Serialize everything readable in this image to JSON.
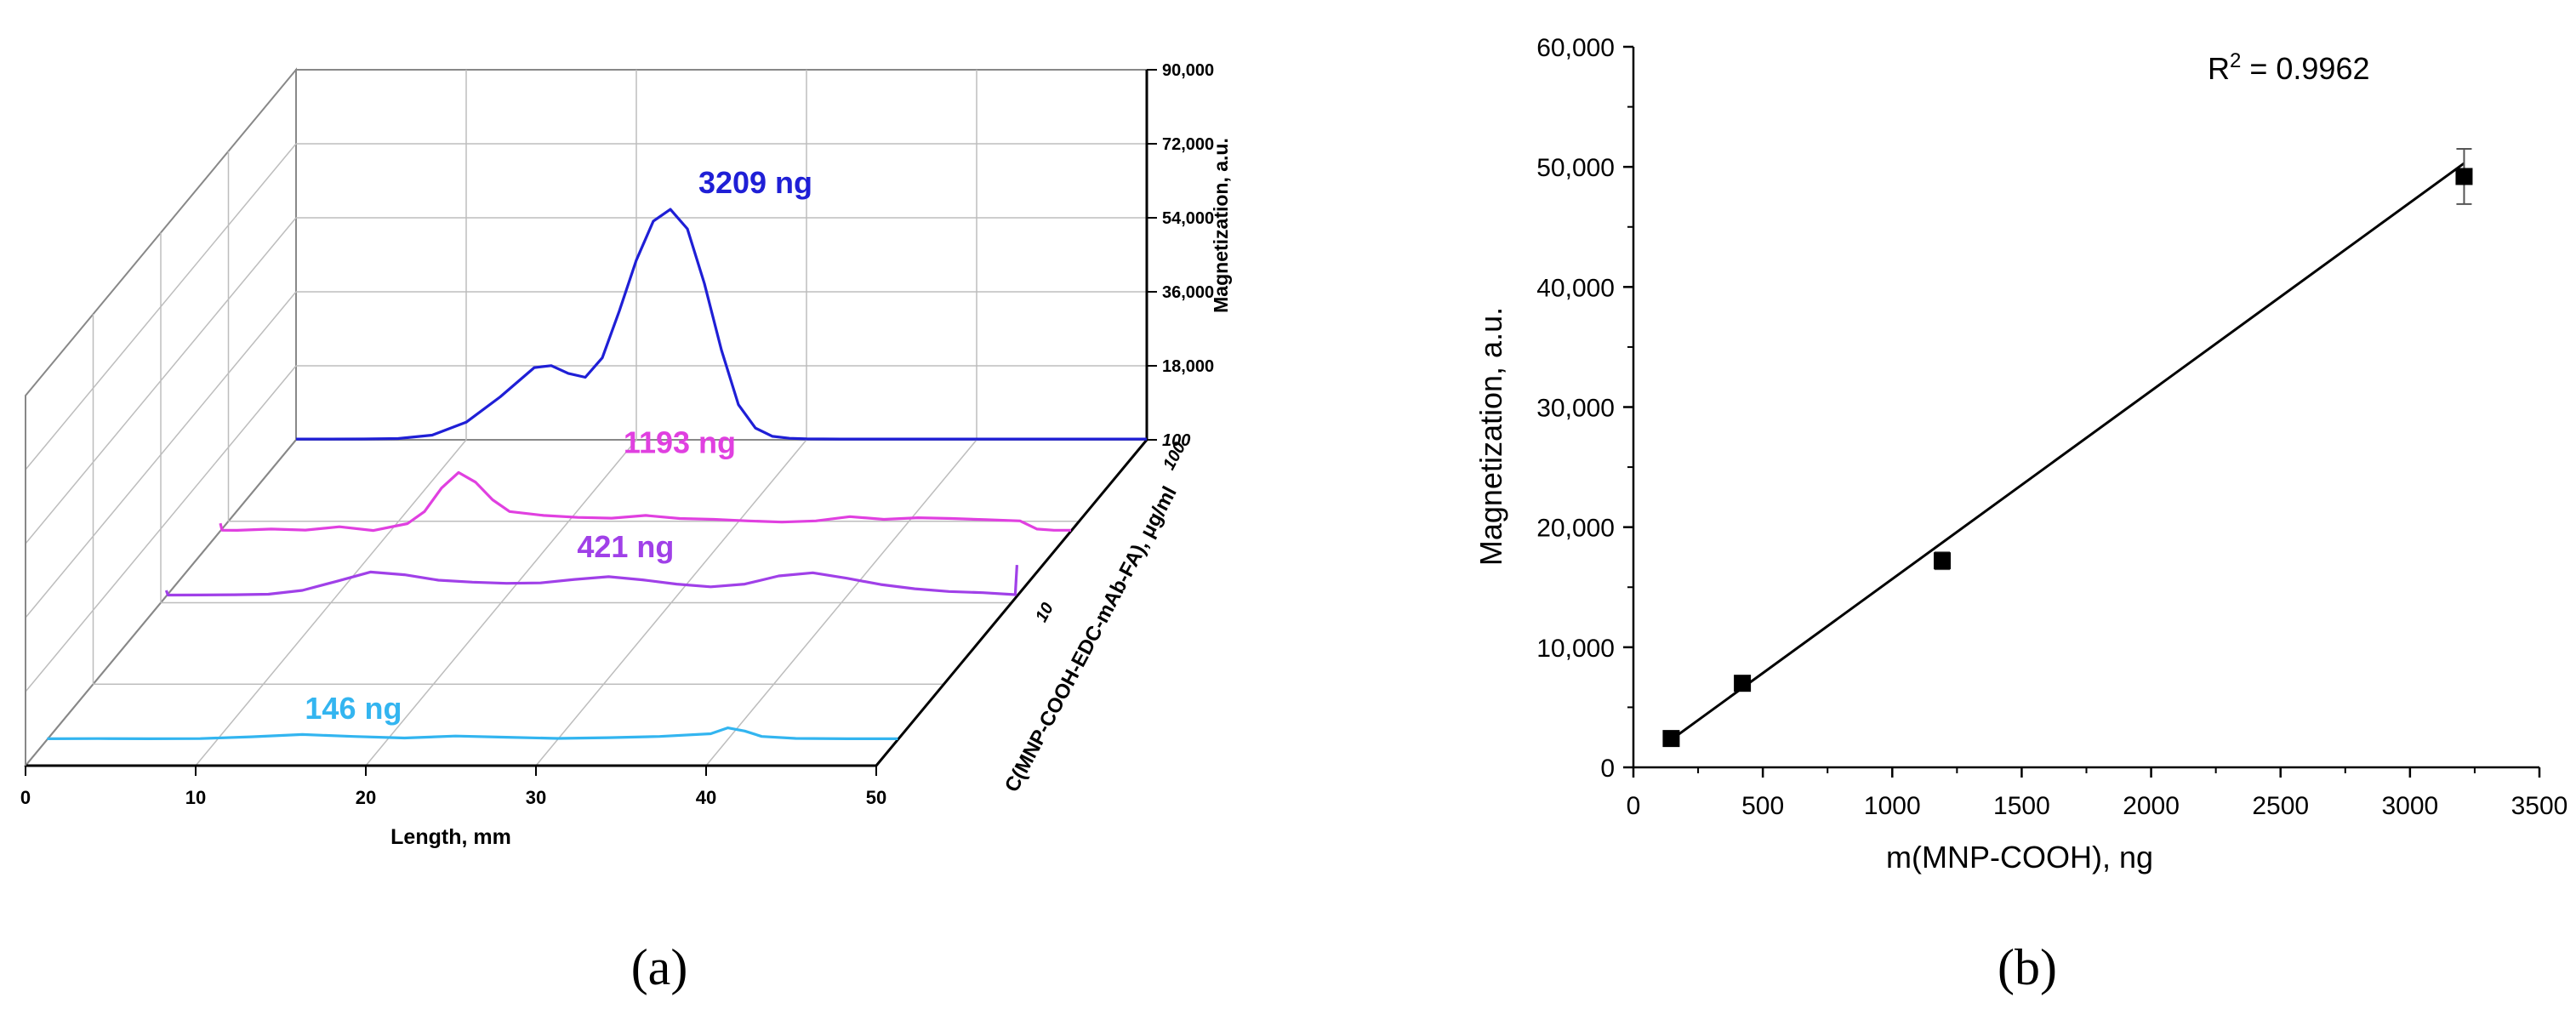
{
  "chart_data": [
    {
      "panel": "(a)",
      "type": "line",
      "xlabel": "Length, mm",
      "zlabel": "Magnetization, a.u.",
      "ylabel": "C(MNP-COOH-EDC-mAb-FA), μg/ml",
      "x_ticks": [
        "0",
        "10",
        "20",
        "30",
        "40",
        "50"
      ],
      "z_ticks": [
        "100",
        "18,000",
        "36,000",
        "54,000",
        "72,000",
        "90,000"
      ],
      "y_ticks": [
        "10",
        "100"
      ],
      "xlim": [
        0,
        50
      ],
      "zlim": [
        0,
        90000
      ],
      "series": [
        {
          "label": "3209 ng",
          "color": "#1f1fd6",
          "x": [
            0,
            2,
            4,
            6,
            8,
            10,
            12,
            14,
            15,
            16,
            17,
            18,
            19,
            20,
            21,
            22,
            23,
            24,
            25,
            26,
            27,
            28,
            29,
            30,
            32,
            34,
            36,
            38,
            40,
            42,
            44,
            46,
            48,
            50
          ],
          "y": [
            200,
            200,
            220,
            320,
            1200,
            4500,
            11000,
            18500,
            19000,
            17000,
            16000,
            21000,
            33000,
            46000,
            56000,
            59000,
            54000,
            40000,
            23000,
            9000,
            3000,
            900,
            400,
            250,
            200,
            200,
            200,
            200,
            200,
            200,
            200,
            200,
            200,
            200
          ]
        },
        {
          "label": "1193 ng",
          "color": "#e040e0",
          "x": [
            0,
            0.1,
            1,
            3,
            5,
            7,
            9,
            11,
            12,
            13,
            14,
            15,
            16,
            17,
            19,
            21,
            23,
            25,
            27,
            29,
            31,
            33,
            35,
            37,
            39,
            41,
            43,
            45,
            47,
            48,
            49,
            50
          ],
          "y": [
            2000,
            200,
            180,
            500,
            250,
            1100,
            150,
            1900,
            5000,
            11000,
            15000,
            12500,
            8000,
            5000,
            4000,
            3500,
            3300,
            4000,
            3200,
            3000,
            2600,
            2300,
            2600,
            3700,
            3000,
            3400,
            3200,
            2900,
            2600,
            500,
            200,
            200
          ]
        },
        {
          "label": "421 ng",
          "color": "#a040e8",
          "x": [
            0,
            0.1,
            2,
            4,
            6,
            8,
            10,
            12,
            14,
            16,
            18,
            20,
            22,
            24,
            26,
            28,
            30,
            32,
            34,
            36,
            38,
            40,
            42,
            44,
            46,
            48,
            49.9,
            50
          ],
          "y": [
            1500,
            300,
            320,
            380,
            500,
            1500,
            3800,
            6200,
            5500,
            4100,
            3600,
            3300,
            3400,
            4300,
            5000,
            4200,
            3100,
            2400,
            3100,
            5200,
            6000,
            4600,
            3000,
            1900,
            1200,
            900,
            400,
            8000
          ]
        },
        {
          "label": "146 ng",
          "color": "#33b5f0",
          "x": [
            0,
            3,
            6,
            9,
            12,
            15,
            18,
            21,
            24,
            27,
            30,
            33,
            36,
            39,
            40,
            41,
            42,
            44,
            47,
            50
          ],
          "y": [
            200,
            260,
            200,
            260,
            700,
            1300,
            800,
            400,
            900,
            600,
            300,
            500,
            800,
            1500,
            3000,
            2200,
            800,
            300,
            200,
            200
          ]
        }
      ]
    },
    {
      "panel": "(b)",
      "type": "scatter",
      "xlabel": "m(MNP-COOH), ng",
      "ylabel": "Magnetization, a.u.",
      "xlim": [
        0,
        3500
      ],
      "ylim": [
        0,
        60000
      ],
      "x_ticks": [
        0,
        500,
        1000,
        1500,
        2000,
        2500,
        3000,
        3500
      ],
      "y_ticks": [
        0,
        10000,
        20000,
        30000,
        40000,
        50000,
        60000
      ],
      "x_tick_labels": [
        "0",
        "500",
        "1000",
        "1500",
        "2000",
        "2500",
        "3000",
        "3500"
      ],
      "y_tick_labels": [
        "0",
        "10,000",
        "20,000",
        "30,000",
        "40,000",
        "50,000",
        "60,000"
      ],
      "annotation": {
        "prefix": "R",
        "superscript": "2",
        "suffix": " = 0.9962"
      },
      "points": [
        {
          "x": 146,
          "y": 2400,
          "err": 200
        },
        {
          "x": 421,
          "y": 7000,
          "err": 200
        },
        {
          "x": 1193,
          "y": 17200,
          "err": 700
        },
        {
          "x": 3209,
          "y": 49200,
          "err": 2300
        }
      ],
      "fit": {
        "x0": 146,
        "y0": 2300,
        "x1": 3209,
        "y1": 50300
      }
    }
  ]
}
